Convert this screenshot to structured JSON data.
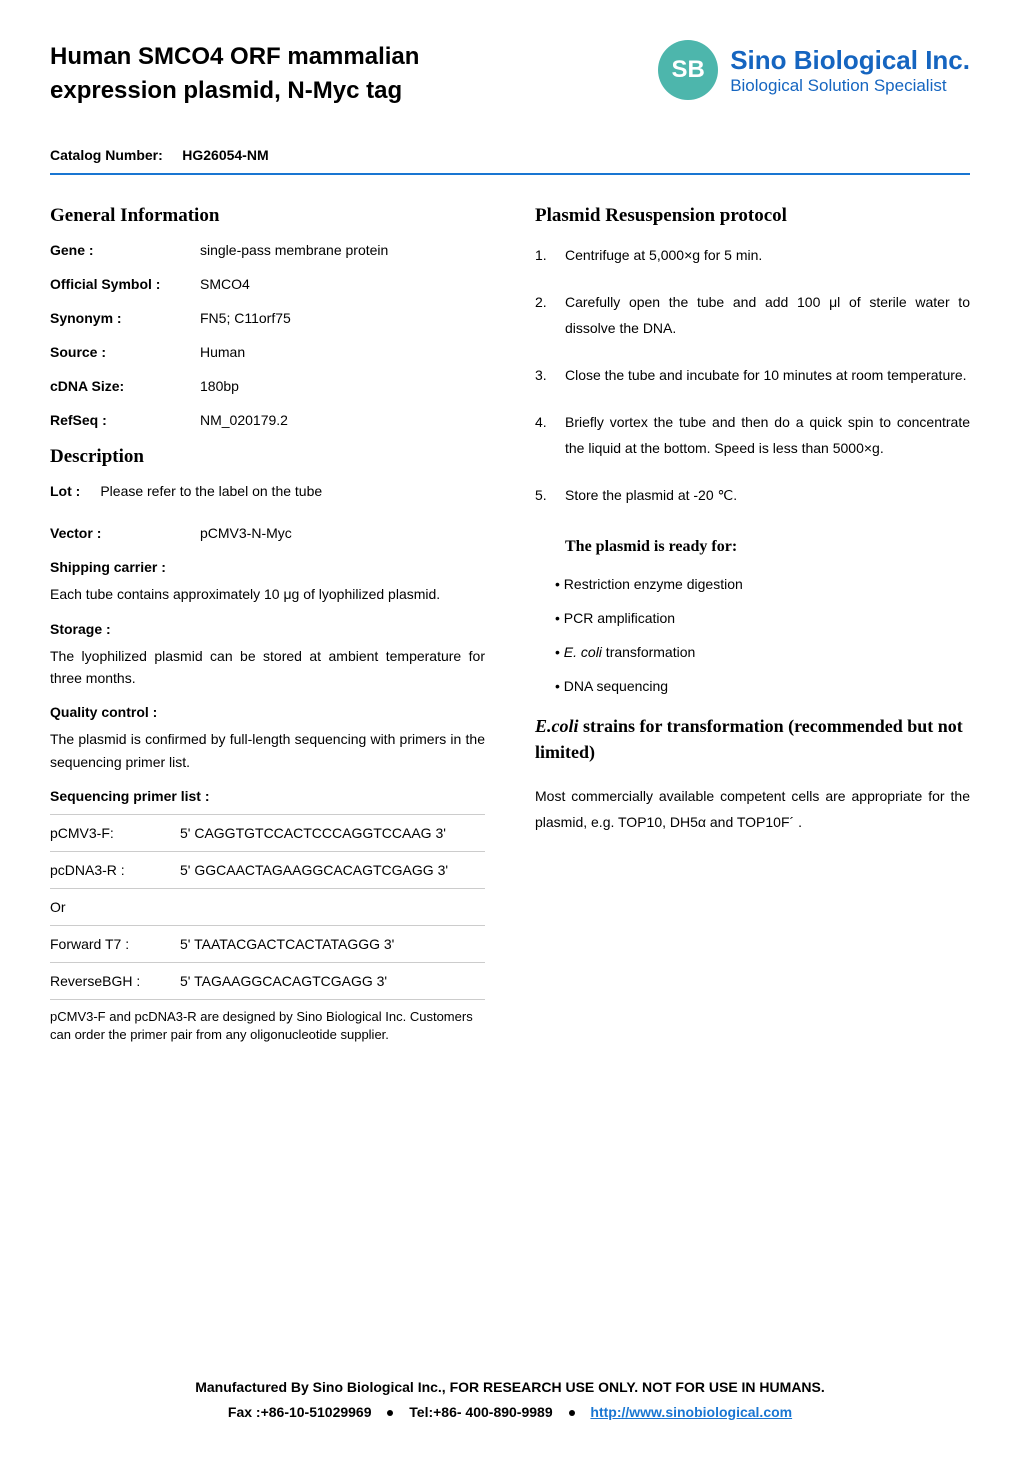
{
  "header": {
    "title": "Human SMCO4 ORF mammalian expression plasmid, N-Myc tag",
    "logo_text": "SB",
    "company_name": "Sino Biological Inc.",
    "company_tagline": "Biological Solution Specialist"
  },
  "catalog": {
    "label": "Catalog Number:",
    "value": "HG26054-NM"
  },
  "general_info": {
    "heading": "General Information",
    "rows": [
      {
        "label": "Gene :",
        "value": "single-pass membrane protein"
      },
      {
        "label": "Official Symbol :",
        "value": "SMCO4"
      },
      {
        "label": "Synonym :",
        "value": "FN5; C11orf75"
      },
      {
        "label": "Source :",
        "value": "Human"
      },
      {
        "label": "cDNA Size:",
        "value": "180bp"
      },
      {
        "label": "RefSeq :",
        "value": "NM_020179.2"
      }
    ]
  },
  "description": {
    "heading": "Description",
    "lot_label": "Lot :",
    "lot_value": "Please refer to the label on the tube",
    "vector_label": "Vector :",
    "vector_value": "pCMV3-N-Myc",
    "shipping_label": "Shipping carrier :",
    "shipping_text": "Each tube contains approximately 10 μg of lyophilized plasmid.",
    "storage_label": "Storage :",
    "storage_text": "The lyophilized plasmid can be stored at ambient temperature for three months.",
    "quality_label": "Quality control :",
    "quality_text": "The plasmid is confirmed by full-length sequencing with primers in the sequencing primer list.",
    "primer_label": "Sequencing primer list :"
  },
  "primers": {
    "rows": [
      {
        "name": "pCMV3-F:",
        "seq": "5' CAGGTGTCCACTCCCAGGTCCAAG 3'"
      },
      {
        "name": "pcDNA3-R :",
        "seq": "5' GGCAACTAGAAGGCACAGTCGAGG 3'"
      },
      {
        "name": "Or",
        "seq": ""
      },
      {
        "name": "Forward T7 :",
        "seq": "5' TAATACGACTCACTATAGGG 3'"
      },
      {
        "name": "ReverseBGH :",
        "seq": "5' TAGAAGGCACAGTCGAGG 3'"
      }
    ],
    "note": "pCMV3-F and pcDNA3-R are designed by Sino Biological Inc. Customers can order the primer pair from any oligonucleotide supplier."
  },
  "protocol": {
    "heading": "Plasmid Resuspension protocol",
    "steps": [
      "Centrifuge at 5,000×g for 5 min.",
      "Carefully open the tube and add 100 μl of sterile water to dissolve the DNA.",
      "Close the tube and incubate for 10 minutes at room temperature.",
      "Briefly vortex the tube and then do a quick spin to concentrate the liquid at the bottom. Speed is less than 5000×g.",
      "Store the plasmid at -20 ℃."
    ]
  },
  "ready": {
    "heading": "The plasmid is ready for:",
    "items": [
      "• Restriction enzyme digestion",
      "• PCR amplification",
      "• E. coli  transformation",
      "• DNA sequencing"
    ]
  },
  "ecoli": {
    "heading_italic": "E.coli",
    "heading_rest": " strains for transformation (recommended but not limited)",
    "text": "Most commercially available competent cells are appropriate for the plasmid, e.g. TOP10, DH5α and TOP10F´ ."
  },
  "footer": {
    "line1": "Manufactured By Sino Biological Inc.,  FOR RESEARCH USE ONLY. NOT FOR USE IN HUMANS.",
    "fax": "Fax :+86-10-51029969",
    "tel": "Tel:+86- 400-890-9989",
    "link": "http://www.sinobiological.com"
  }
}
